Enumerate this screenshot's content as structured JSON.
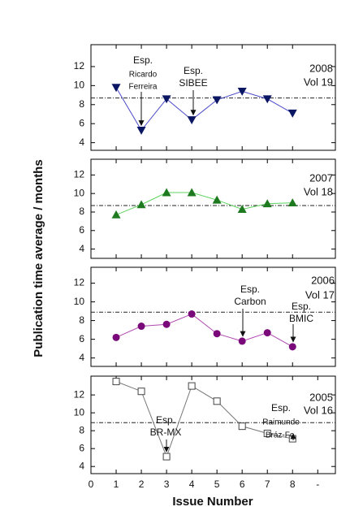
{
  "ylabel": "Publication time average / months",
  "xlabel": "Issue Number",
  "chart_data": [
    {
      "type": "line",
      "marker": "triangle-down",
      "color": "#0b1663",
      "line_color": "#4a4ac8",
      "x": [
        1,
        2,
        3,
        4,
        5,
        6,
        7,
        8
      ],
      "values": [
        9.8,
        5.3,
        8.6,
        6.4,
        8.5,
        9.4,
        8.6,
        7.1
      ],
      "reference_line": 8.7,
      "ylim": [
        3.2,
        14.3
      ],
      "yticks": [
        4,
        6,
        8,
        10,
        12
      ],
      "xlim": [
        0,
        9.7
      ],
      "xticks": [
        0,
        1,
        2,
        3,
        4,
        5,
        6,
        7,
        8
      ],
      "label": [
        "2008",
        "Vol 19"
      ],
      "annotations": [
        [
          "Esp.",
          "Ricardo",
          "Ferreira"
        ],
        [
          "Esp.",
          "SIBEE"
        ]
      ]
    },
    {
      "type": "line",
      "marker": "triangle-up",
      "color": "#1e7a1e",
      "line_color": "#5fd35f",
      "x": [
        1,
        2,
        3,
        4,
        5,
        6,
        7,
        8
      ],
      "values": [
        7.7,
        8.8,
        10.1,
        10.1,
        9.3,
        8.3,
        8.9,
        9.0
      ],
      "reference_line": 8.7,
      "ylim": [
        3.0,
        13.7
      ],
      "yticks": [
        4,
        6,
        8,
        10,
        12
      ],
      "xlim": [
        0,
        9.7
      ],
      "xticks": [
        0,
        1,
        2,
        3,
        4,
        5,
        6,
        7,
        8
      ],
      "label": [
        "2007",
        "Vol 18"
      ],
      "annotations": []
    },
    {
      "type": "line",
      "marker": "circle",
      "color": "#7a0a7a",
      "line_color": "#b04ab0",
      "x": [
        1,
        2,
        3,
        4,
        5,
        6,
        7,
        8
      ],
      "values": [
        6.2,
        7.4,
        7.6,
        8.7,
        6.6,
        5.8,
        6.7,
        5.2
      ],
      "reference_line": 8.9,
      "ylim": [
        3.1,
        13.7
      ],
      "yticks": [
        4,
        6,
        8,
        10,
        12
      ],
      "xlim": [
        0,
        9.7
      ],
      "xticks": [
        0,
        1,
        2,
        3,
        4,
        5,
        6,
        7,
        8
      ],
      "label": [
        "2006",
        "Vol 17"
      ],
      "annotations": [
        [
          "Esp.",
          "Carbon"
        ],
        [
          "Esp.",
          "BMIC"
        ]
      ]
    },
    {
      "type": "line",
      "marker": "square-open",
      "color": "#444444",
      "line_color": "#777777",
      "x": [
        1,
        2,
        3,
        4,
        5,
        6,
        7,
        8
      ],
      "values": [
        13.5,
        12.4,
        5.1,
        13.0,
        11.3,
        8.5,
        7.7,
        7.1
      ],
      "reference_line": 8.9,
      "ylim": [
        3.2,
        14.1
      ],
      "yticks": [
        4,
        6,
        8,
        10,
        12
      ],
      "xlim": [
        0,
        9.7
      ],
      "xticks": [
        0,
        1,
        2,
        3,
        4,
        5,
        6,
        7,
        8,
        {
          "value": 9,
          "label": "-"
        }
      ],
      "label": [
        "2005",
        "Vol 16"
      ],
      "annotations": [
        [
          "Esp.",
          "BR-MX"
        ],
        [
          "Esp.",
          "Raimundo",
          "Bráz-Fo."
        ]
      ]
    }
  ]
}
